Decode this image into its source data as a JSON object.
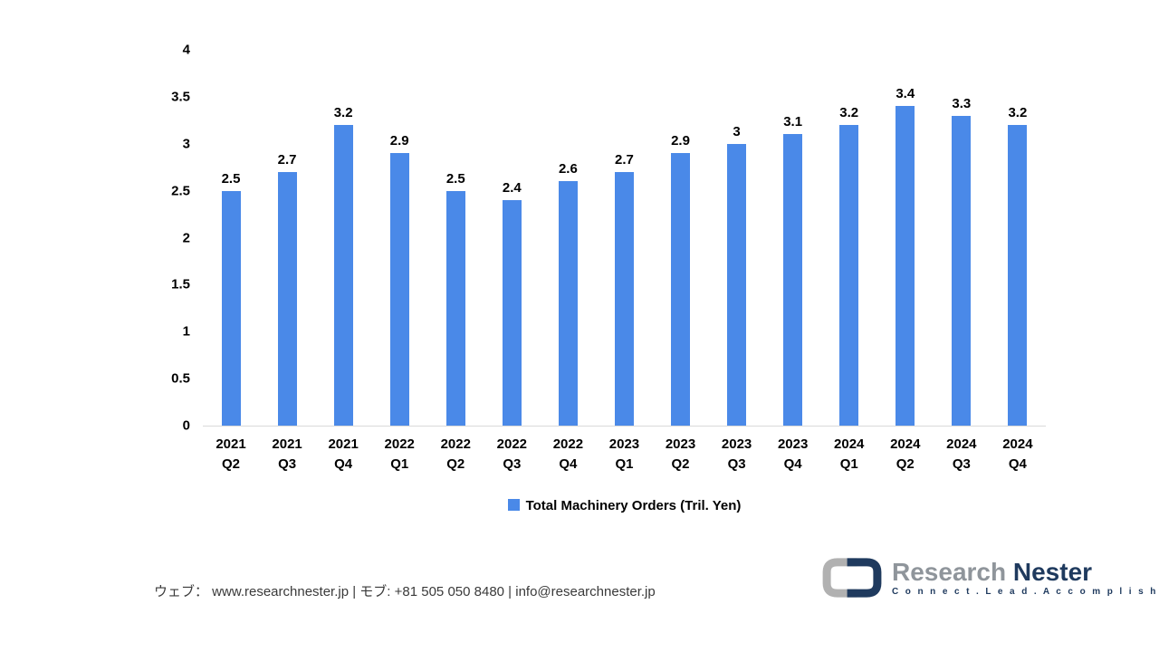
{
  "chart_data": {
    "type": "bar",
    "title": "",
    "legend": "Total Machinery Orders (Tril. Yen)",
    "legend_position": "bottom",
    "categories": [
      {
        "year": "2021",
        "quarter": "Q2"
      },
      {
        "year": "2021",
        "quarter": "Q3"
      },
      {
        "year": "2021",
        "quarter": "Q4"
      },
      {
        "year": "2022",
        "quarter": "Q1"
      },
      {
        "year": "2022",
        "quarter": "Q2"
      },
      {
        "year": "2022",
        "quarter": "Q3"
      },
      {
        "year": "2022",
        "quarter": "Q4"
      },
      {
        "year": "2023",
        "quarter": "Q1"
      },
      {
        "year": "2023",
        "quarter": "Q2"
      },
      {
        "year": "2023",
        "quarter": "Q3"
      },
      {
        "year": "2023",
        "quarter": "Q4"
      },
      {
        "year": "2024",
        "quarter": "Q1"
      },
      {
        "year": "2024",
        "quarter": "Q2"
      },
      {
        "year": "2024",
        "quarter": "Q3"
      },
      {
        "year": "2024",
        "quarter": "Q4"
      }
    ],
    "values": [
      2.5,
      2.7,
      3.2,
      2.9,
      2.5,
      2.4,
      2.6,
      2.7,
      2.9,
      3.0,
      3.1,
      3.2,
      3.4,
      3.3,
      3.2
    ],
    "value_labels": [
      "2.5",
      "2.7",
      "3.2",
      "2.9",
      "2.5",
      "2.4",
      "2.6",
      "2.7",
      "2.9",
      "3",
      "3.1",
      "3.2",
      "3.4",
      "3.3",
      "3.2"
    ],
    "xlabel": "",
    "ylabel": "",
    "ylim": [
      0,
      4
    ],
    "yticks": [
      "0",
      "0.5",
      "1",
      "1.5",
      "2",
      "2.5",
      "3",
      "3.5",
      "4"
    ],
    "grid": false,
    "bar_color": "#4a89e8",
    "axis_line_color": "#d9d9d9"
  },
  "footer": {
    "contact_line": "ウェブ：  www.researchnester.jp  | モブ: +81 505 050 8480 | info@researchnester.jp",
    "logo": {
      "name_primary": "Research ",
      "name_secondary": "Nester",
      "tagline": "C o n n e c t .   L e a d .   A c c o m p l i s h",
      "color_gray": "#b1b1b1",
      "color_navy": "#1f3a5e"
    }
  }
}
